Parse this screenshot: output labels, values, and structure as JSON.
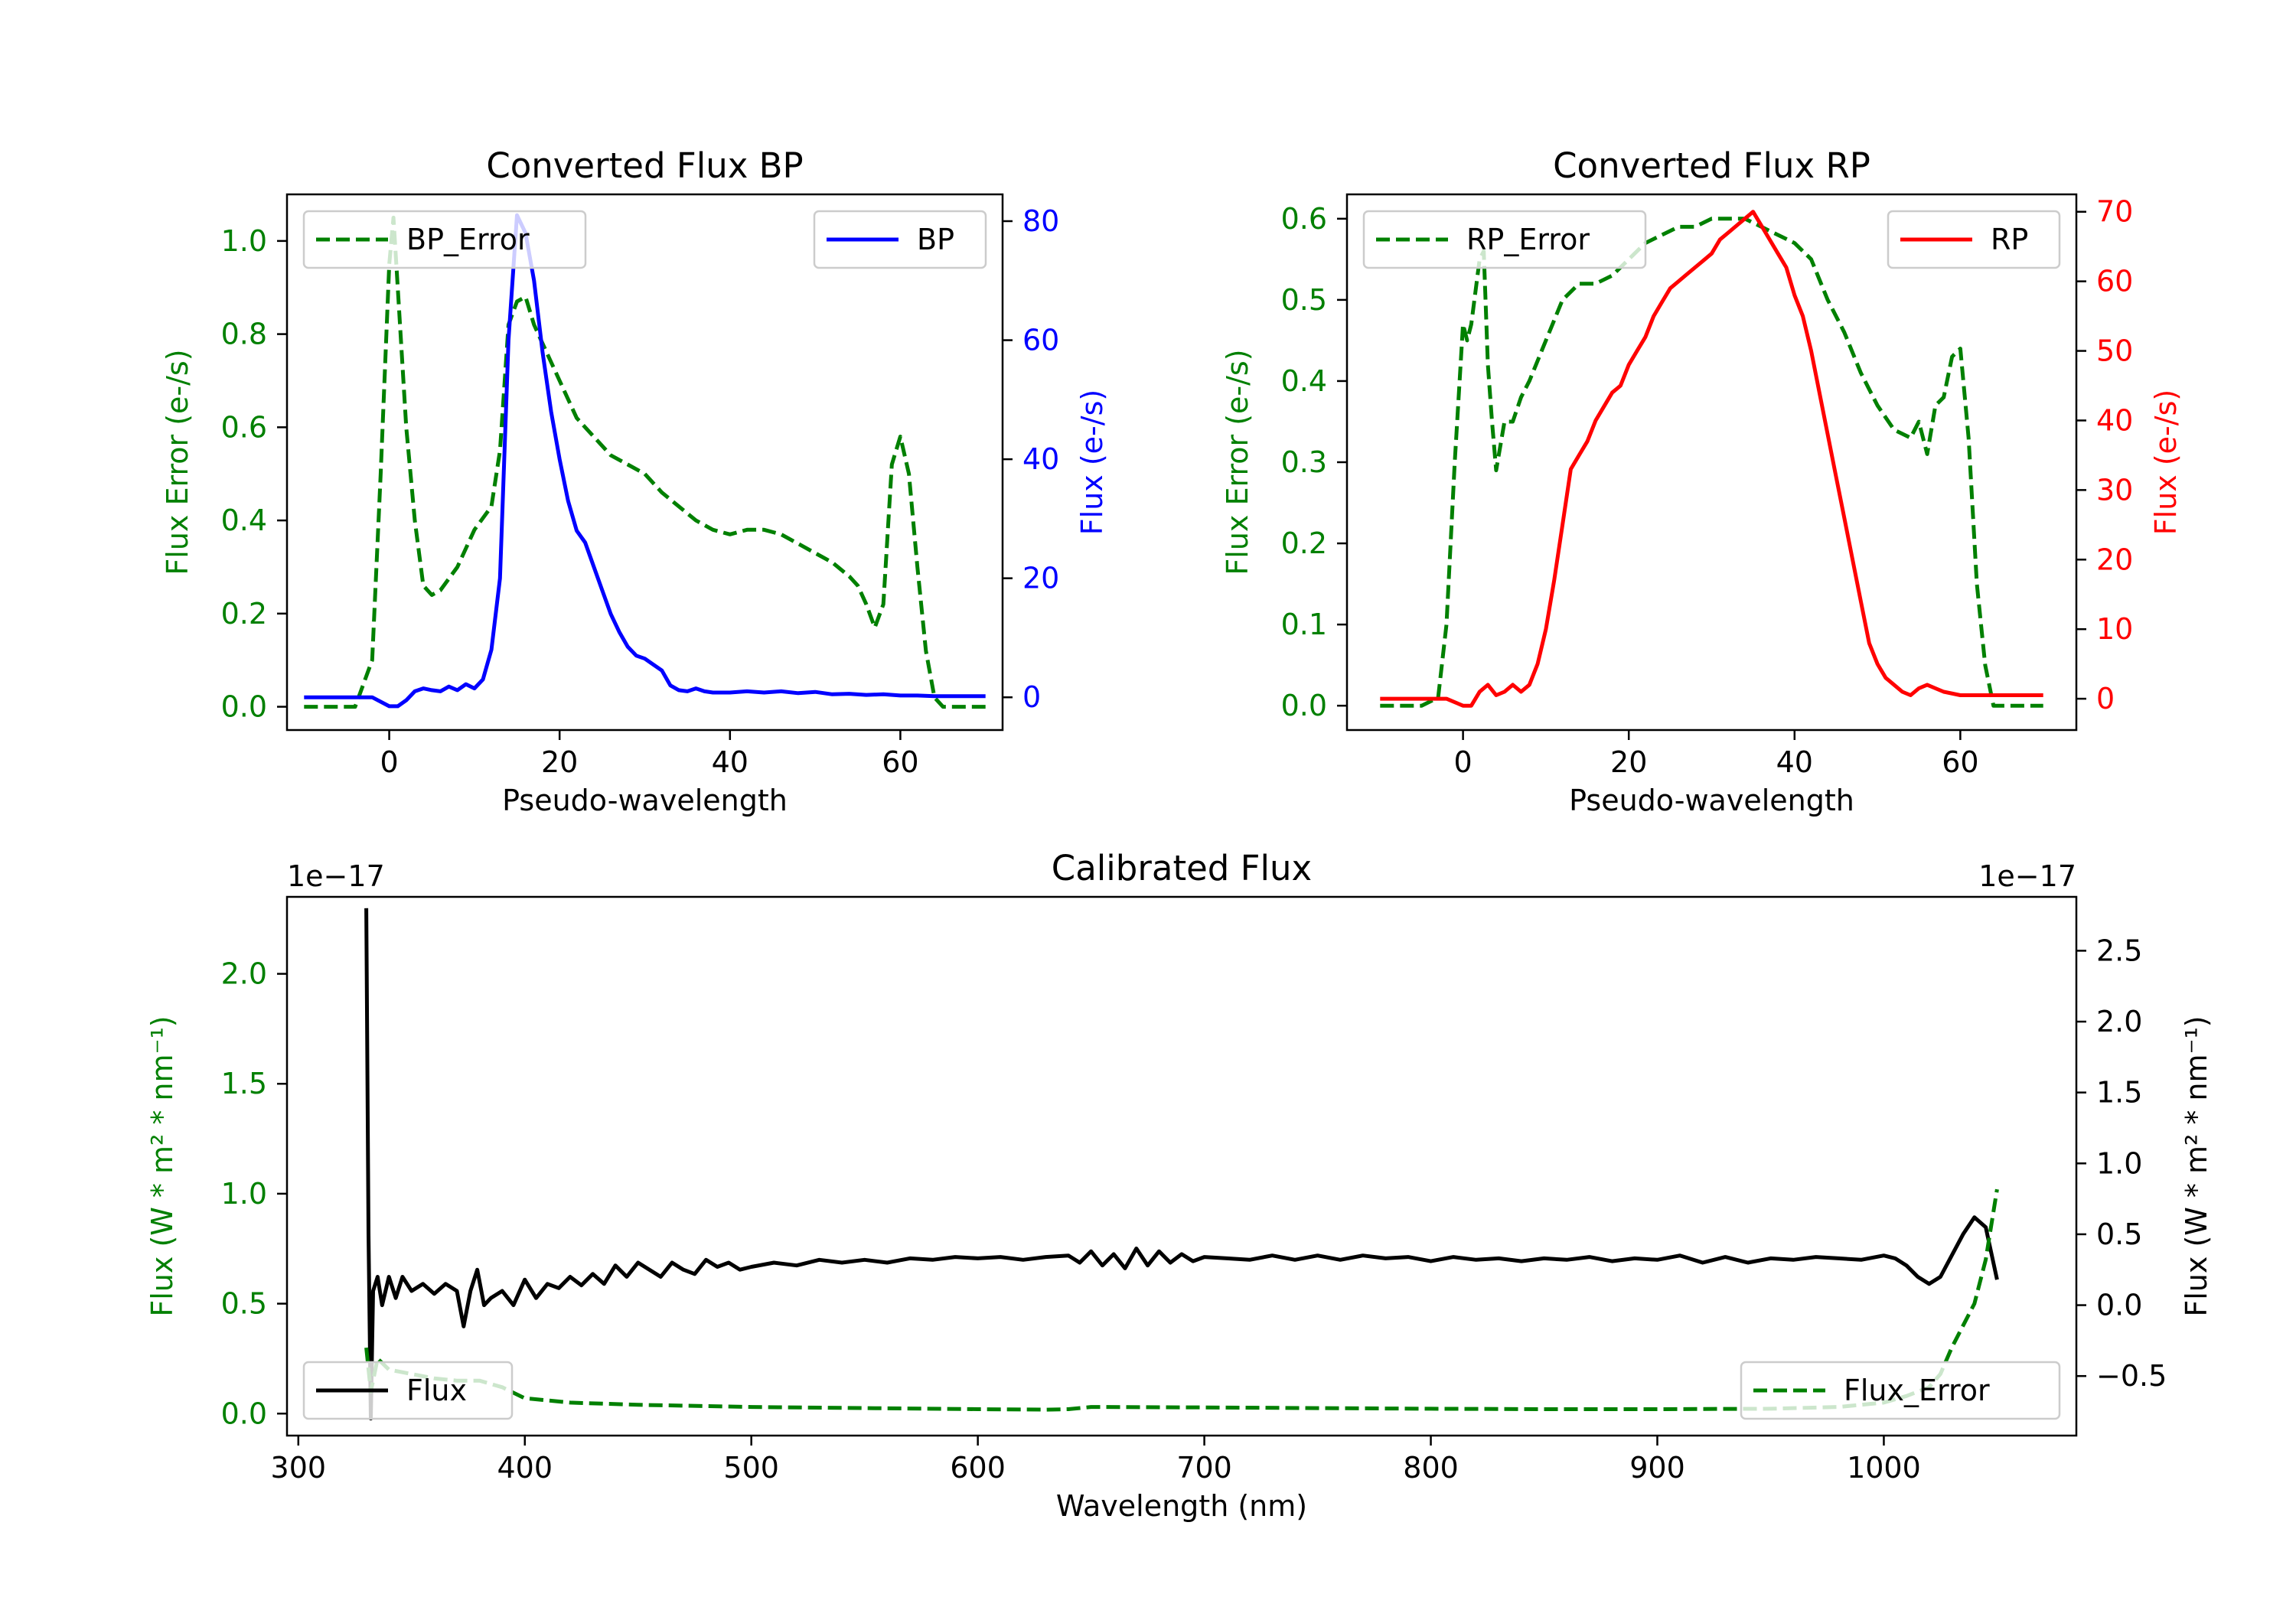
{
  "chart_data": [
    {
      "id": "bp",
      "type": "line",
      "title": "Converted Flux BP",
      "xlabel": "Pseudo-wavelength",
      "ylabel_left": "Flux Error (e-/s)",
      "ylabel_right": "Flux (e-/s)",
      "xlim": [
        -12,
        72
      ],
      "ylim_left": [
        -0.05,
        1.1
      ],
      "ylim_right": [
        -5.5,
        84.5
      ],
      "xticks": [
        0,
        20,
        40,
        60
      ],
      "yticks_left": [
        0.0,
        0.2,
        0.4,
        0.6,
        0.8,
        1.0
      ],
      "yticks_right": [
        0,
        20,
        40,
        60,
        80
      ],
      "series": [
        {
          "name": "BP_Error",
          "axis": "left",
          "color": "#008000",
          "style": "dashed",
          "legend": "top-left",
          "x": [
            -10,
            -4,
            -2,
            -1,
            0,
            0.5,
            1,
            2,
            3,
            4,
            5,
            6,
            8,
            10,
            12,
            13,
            14,
            15,
            16,
            17,
            18,
            20,
            22,
            24,
            26,
            28,
            30,
            32,
            34,
            36,
            38,
            40,
            42,
            44,
            46,
            48,
            50,
            52,
            54,
            55,
            56,
            57,
            58,
            59,
            60,
            61,
            62,
            63,
            64,
            65,
            66,
            70
          ],
          "y": [
            0,
            0,
            0.1,
            0.5,
            0.95,
            1.05,
            0.9,
            0.6,
            0.4,
            0.26,
            0.24,
            0.25,
            0.3,
            0.38,
            0.43,
            0.55,
            0.82,
            0.87,
            0.88,
            0.82,
            0.78,
            0.7,
            0.62,
            0.58,
            0.54,
            0.52,
            0.5,
            0.46,
            0.43,
            0.4,
            0.38,
            0.37,
            0.38,
            0.38,
            0.37,
            0.35,
            0.33,
            0.31,
            0.28,
            0.26,
            0.22,
            0.17,
            0.22,
            0.52,
            0.58,
            0.5,
            0.3,
            0.12,
            0.02,
            0,
            0,
            0
          ]
        },
        {
          "name": "BP",
          "axis": "right",
          "color": "#0000ff",
          "style": "solid",
          "legend": "top-right",
          "x": [
            -10,
            -4,
            -2,
            0,
            1,
            2,
            3,
            4,
            5,
            6,
            7,
            8,
            9,
            10,
            11,
            12,
            13,
            14,
            15,
            16,
            17,
            18,
            19,
            20,
            21,
            22,
            23,
            24,
            25,
            26,
            27,
            28,
            29,
            30,
            31,
            32,
            33,
            34,
            35,
            36,
            37,
            38,
            40,
            42,
            44,
            46,
            48,
            50,
            52,
            54,
            56,
            58,
            60,
            62,
            64,
            66,
            70
          ],
          "y": [
            0,
            0,
            0,
            -1.5,
            -1.5,
            -0.5,
            1,
            1.5,
            1.2,
            1,
            1.8,
            1.2,
            2.2,
            1.5,
            3,
            8,
            20,
            60,
            81,
            78,
            70,
            58,
            48,
            40,
            33,
            28,
            26,
            22,
            18,
            14,
            11,
            8.5,
            7,
            6.5,
            5.5,
            4.5,
            2,
            1.2,
            1,
            1.5,
            1,
            0.8,
            0.8,
            1,
            0.8,
            1,
            0.7,
            0.9,
            0.5,
            0.6,
            0.4,
            0.5,
            0.3,
            0.3,
            0.2,
            0.2,
            0.2
          ]
        }
      ]
    },
    {
      "id": "rp",
      "type": "line",
      "title": "Converted Flux RP",
      "xlabel": "Pseudo-wavelength",
      "ylabel_left": "Flux Error (e-/s)",
      "ylabel_right": "Flux (e-/s)",
      "xlim": [
        -14,
        74
      ],
      "ylim_left": [
        -0.03,
        0.63
      ],
      "ylim_right": [
        -4.5,
        72.5
      ],
      "xticks": [
        0,
        20,
        40,
        60
      ],
      "yticks_left": [
        0.0,
        0.1,
        0.2,
        0.3,
        0.4,
        0.5,
        0.6
      ],
      "yticks_right": [
        0,
        10,
        20,
        30,
        40,
        50,
        60,
        70
      ],
      "series": [
        {
          "name": "RP_Error",
          "axis": "left",
          "color": "#008000",
          "style": "dashed",
          "legend": "top-left",
          "x": [
            -10,
            -5,
            -3,
            -2,
            -1,
            0,
            0.5,
            1,
            2,
            2.5,
            3,
            3.5,
            4,
            5,
            6,
            7,
            8,
            10,
            12,
            14,
            16,
            18,
            20,
            22,
            24,
            26,
            28,
            30,
            32,
            34,
            36,
            38,
            40,
            42,
            44,
            46,
            48,
            50,
            52,
            54,
            55,
            56,
            57,
            58,
            59,
            60,
            61,
            62,
            63,
            64,
            70
          ],
          "y": [
            0,
            0,
            0.01,
            0.1,
            0.3,
            0.47,
            0.45,
            0.47,
            0.55,
            0.56,
            0.42,
            0.35,
            0.29,
            0.35,
            0.35,
            0.38,
            0.4,
            0.45,
            0.5,
            0.52,
            0.52,
            0.53,
            0.55,
            0.57,
            0.58,
            0.59,
            0.59,
            0.6,
            0.6,
            0.6,
            0.59,
            0.58,
            0.57,
            0.55,
            0.5,
            0.46,
            0.41,
            0.37,
            0.34,
            0.33,
            0.35,
            0.31,
            0.37,
            0.38,
            0.43,
            0.44,
            0.33,
            0.15,
            0.05,
            0,
            0
          ]
        },
        {
          "name": "RP",
          "axis": "right",
          "color": "#ff0000",
          "style": "solid",
          "legend": "top-right",
          "x": [
            -10,
            -4,
            -2,
            0,
            1,
            2,
            3,
            4,
            5,
            6,
            7,
            8,
            9,
            10,
            11,
            12,
            13,
            14,
            15,
            16,
            17,
            18,
            19,
            20,
            21,
            22,
            23,
            24,
            25,
            26,
            27,
            28,
            29,
            30,
            31,
            32,
            33,
            34,
            35,
            36,
            37,
            38,
            39,
            40,
            41,
            42,
            43,
            44,
            45,
            46,
            47,
            48,
            49,
            50,
            51,
            52,
            53,
            54,
            55,
            56,
            57,
            58,
            60,
            62,
            64,
            66,
            70
          ],
          "y": [
            0,
            0,
            0,
            -1,
            -1,
            1,
            2,
            0.5,
            1,
            2,
            1,
            2,
            5,
            10,
            17,
            25,
            33,
            35,
            37,
            40,
            42,
            44,
            45,
            48,
            50,
            52,
            55,
            57,
            59,
            60,
            61,
            62,
            63,
            64,
            66,
            67,
            68,
            69,
            70,
            68,
            66,
            64,
            62,
            58,
            55,
            50,
            44,
            38,
            32,
            26,
            20,
            14,
            8,
            5,
            3,
            2,
            1,
            0.5,
            1.5,
            2,
            1.5,
            1,
            0.5,
            0.5,
            0.5,
            0.5,
            0.5
          ]
        }
      ]
    },
    {
      "id": "calibrated",
      "type": "line",
      "title": "Calibrated Flux",
      "xlabel": "Wavelength (nm)",
      "ylabel_left": "Flux (W * m² * nm⁻¹)",
      "ylabel_right": "Flux (W * m² * nm⁻¹)",
      "offset_left": "1e−17",
      "offset_right": "1e−17",
      "xlim": [
        295,
        1085
      ],
      "ylim_left": [
        -0.1,
        2.35
      ],
      "ylim_right": [
        -0.92,
        2.88
      ],
      "xticks": [
        300,
        400,
        500,
        600,
        700,
        800,
        900,
        1000
      ],
      "yticks_left": [
        0.0,
        0.5,
        1.0,
        1.5,
        2.0
      ],
      "yticks_right": [
        -0.5,
        0.0,
        0.5,
        1.0,
        1.5,
        2.0,
        2.5
      ],
      "series": [
        {
          "name": "Flux",
          "axis": "right",
          "color": "#000000",
          "style": "solid",
          "legend": "bottom-left",
          "x": [
            330,
            331,
            332,
            333,
            335,
            337,
            340,
            343,
            346,
            350,
            355,
            360,
            365,
            370,
            373,
            376,
            379,
            382,
            385,
            390,
            395,
            400,
            405,
            410,
            415,
            420,
            425,
            430,
            435,
            440,
            445,
            450,
            455,
            460,
            465,
            470,
            475,
            480,
            485,
            490,
            495,
            500,
            510,
            520,
            530,
            540,
            550,
            560,
            570,
            580,
            590,
            600,
            610,
            620,
            630,
            640,
            645,
            650,
            655,
            660,
            665,
            670,
            675,
            680,
            685,
            690,
            695,
            700,
            710,
            720,
            730,
            740,
            750,
            760,
            770,
            780,
            790,
            800,
            810,
            820,
            830,
            840,
            850,
            860,
            870,
            880,
            890,
            900,
            910,
            920,
            930,
            940,
            950,
            960,
            970,
            980,
            990,
            1000,
            1005,
            1010,
            1015,
            1020,
            1025,
            1030,
            1035,
            1040,
            1045,
            1050
          ],
          "y": [
            2.8,
            0.5,
            -0.8,
            0.1,
            0.2,
            0.0,
            0.2,
            0.05,
            0.2,
            0.1,
            0.15,
            0.08,
            0.15,
            0.1,
            -0.15,
            0.1,
            0.25,
            0.0,
            0.05,
            0.1,
            0.0,
            0.18,
            0.05,
            0.15,
            0.12,
            0.2,
            0.14,
            0.22,
            0.15,
            0.28,
            0.2,
            0.3,
            0.25,
            0.2,
            0.3,
            0.25,
            0.22,
            0.32,
            0.27,
            0.3,
            0.25,
            0.27,
            0.3,
            0.28,
            0.32,
            0.3,
            0.32,
            0.3,
            0.33,
            0.32,
            0.34,
            0.33,
            0.34,
            0.32,
            0.34,
            0.35,
            0.3,
            0.38,
            0.28,
            0.36,
            0.26,
            0.4,
            0.28,
            0.38,
            0.3,
            0.36,
            0.31,
            0.34,
            0.33,
            0.32,
            0.35,
            0.32,
            0.35,
            0.32,
            0.35,
            0.33,
            0.34,
            0.31,
            0.34,
            0.32,
            0.33,
            0.31,
            0.33,
            0.32,
            0.34,
            0.31,
            0.33,
            0.32,
            0.35,
            0.3,
            0.34,
            0.3,
            0.33,
            0.32,
            0.34,
            0.33,
            0.32,
            0.35,
            0.33,
            0.28,
            0.2,
            0.15,
            0.2,
            0.35,
            0.5,
            0.62,
            0.55,
            0.18
          ]
        },
        {
          "name": "Flux_Error",
          "axis": "left",
          "color": "#008000",
          "style": "dashed",
          "legend": "bottom-right",
          "x": [
            330,
            332,
            335,
            340,
            350,
            360,
            370,
            380,
            390,
            400,
            410,
            420,
            450,
            500,
            550,
            600,
            630,
            640,
            650,
            700,
            750,
            800,
            850,
            900,
            950,
            980,
            1000,
            1010,
            1020,
            1025,
            1030,
            1035,
            1040,
            1045,
            1050
          ],
          "y": [
            0.3,
            0.1,
            0.25,
            0.2,
            0.18,
            0.16,
            0.15,
            0.15,
            0.12,
            0.07,
            0.06,
            0.05,
            0.04,
            0.03,
            0.025,
            0.02,
            0.018,
            0.02,
            0.03,
            0.028,
            0.025,
            0.022,
            0.02,
            0.02,
            0.022,
            0.03,
            0.05,
            0.08,
            0.12,
            0.18,
            0.3,
            0.4,
            0.5,
            0.7,
            1.02
          ]
        }
      ]
    }
  ]
}
